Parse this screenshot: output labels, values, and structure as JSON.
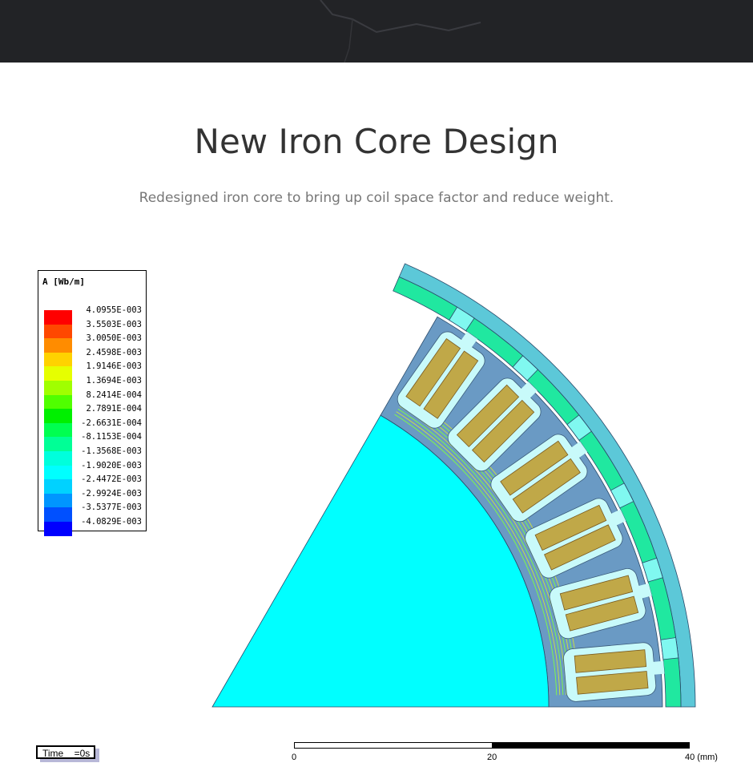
{
  "header": {
    "background": "#222326"
  },
  "hero": {
    "title": "New Iron Core Design",
    "subtitle": "Redesigned iron core to bring up coil space factor and reduce weight."
  },
  "legend": {
    "title": "A [Wb/m]",
    "values": [
      "4.0955E-003",
      "3.5503E-003",
      "3.0050E-003",
      "2.4598E-003",
      "1.9146E-003",
      "1.3694E-003",
      "8.2414E-004",
      "2.7891E-004",
      "-2.6631E-004",
      "-8.1153E-004",
      "-1.3568E-003",
      "-1.9020E-003",
      "-2.4472E-003",
      "-2.9924E-003",
      "-3.5377E-003",
      "-4.0829E-003"
    ],
    "colors": [
      "#ff0000",
      "#ff4800",
      "#ff8c00",
      "#ffd200",
      "#e6ff00",
      "#a0ff00",
      "#50ff00",
      "#00f000",
      "#00ff50",
      "#00ff96",
      "#00ffdc",
      "#00ffff",
      "#00d2ff",
      "#0096ff",
      "#0050ff",
      "#0000ff"
    ]
  },
  "time": {
    "label": "Time",
    "value": "=0s"
  },
  "scale": {
    "labels": [
      "0",
      "20",
      "40 (mm)"
    ]
  },
  "colors": {
    "rotor": "#00ffff",
    "core": "#6a9ac4",
    "slot": "#c8fafa",
    "coil": "#c0a848",
    "magnet": "#20e8a0",
    "outer_ring": "#5cc8d8",
    "flux_line": "#80ff40"
  }
}
